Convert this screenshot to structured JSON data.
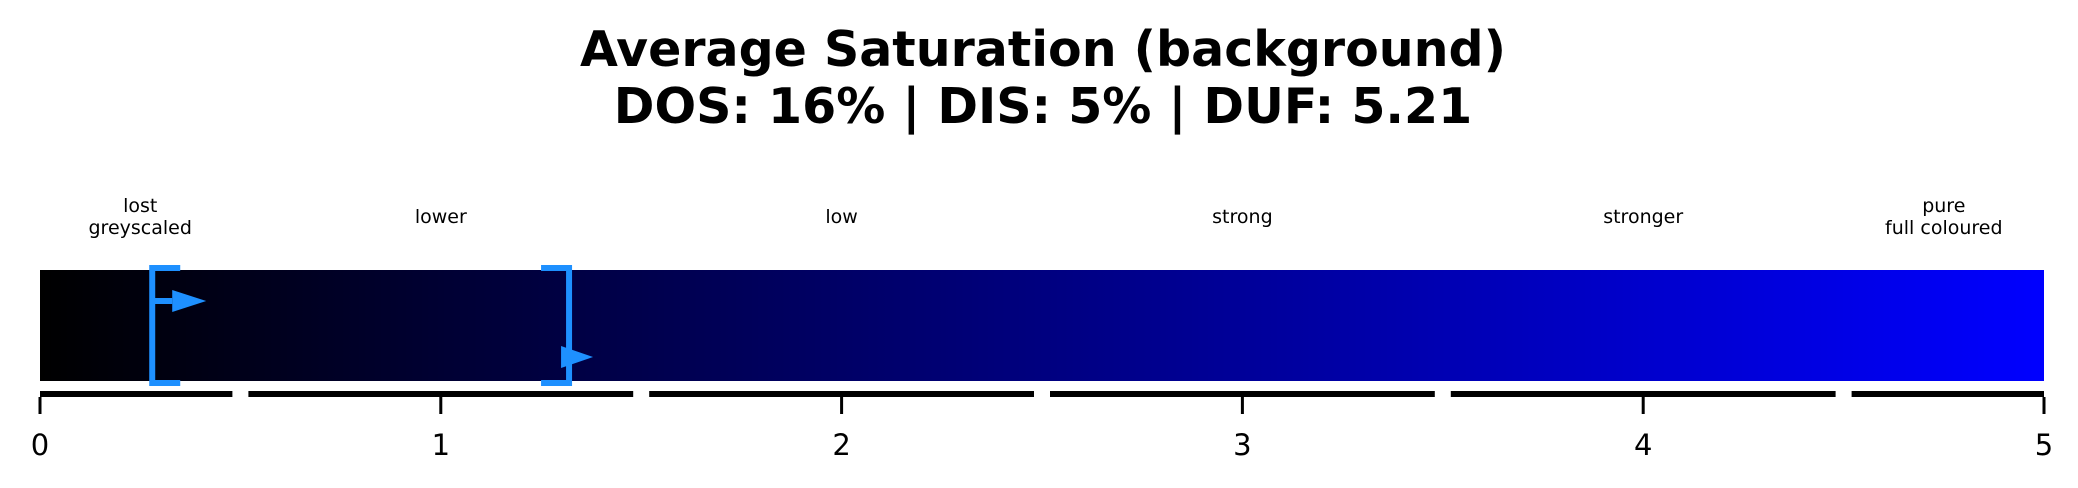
{
  "chart_data": {
    "type": "gauge",
    "title_lines": [
      "Average Saturation (background)",
      "DOS: 16% | DIS: 5% | DUF: 5.21"
    ],
    "xlim": [
      0,
      5
    ],
    "ticks": [
      {
        "value": 0,
        "label": "0"
      },
      {
        "value": 1,
        "label": "1"
      },
      {
        "value": 2,
        "label": "2"
      },
      {
        "value": 3,
        "label": "3"
      },
      {
        "value": 4,
        "label": "4"
      },
      {
        "value": 5,
        "label": "5"
      }
    ],
    "categories": [
      {
        "lines": [
          "lost",
          "greyscaled"
        ],
        "start": 0,
        "end": 0.5
      },
      {
        "lines": [
          "lower"
        ],
        "start": 0.5,
        "end": 1.5
      },
      {
        "lines": [
          "low"
        ],
        "start": 1.5,
        "end": 2.5
      },
      {
        "lines": [
          "strong"
        ],
        "start": 2.5,
        "end": 3.5
      },
      {
        "lines": [
          "stronger"
        ],
        "start": 3.5,
        "end": 4.5
      },
      {
        "lines": [
          "pure",
          "full coloured"
        ],
        "start": 4.5,
        "end": 5
      }
    ],
    "gradient": {
      "start_color": "#000000",
      "end_color": "#0000ff"
    },
    "markers": [
      {
        "value": 0.28,
        "arrow": "upper"
      },
      {
        "value": 1.32,
        "arrow": "lower"
      }
    ],
    "marker_color": "#1e90ff",
    "grid": false
  }
}
